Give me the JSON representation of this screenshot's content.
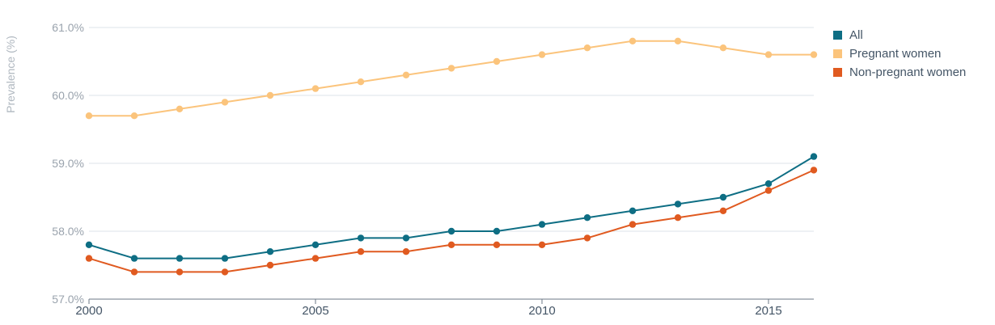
{
  "chart_data": {
    "type": "line",
    "ylabel": "Prevalence (%)",
    "ylim": [
      57.0,
      61.0
    ],
    "yticks": [
      "57.0%",
      "58.0%",
      "59.0%",
      "60.0%",
      "61.0%"
    ],
    "ytick_values": [
      57.0,
      58.0,
      59.0,
      60.0,
      61.0
    ],
    "xlim": [
      2000,
      2016
    ],
    "xticks": [
      "2000",
      "2005",
      "2010",
      "2015"
    ],
    "xtick_values": [
      2000,
      2005,
      2010,
      2015
    ],
    "grid": true,
    "legend_placement": "top-right",
    "x": [
      2000,
      2001,
      2002,
      2003,
      2004,
      2005,
      2006,
      2007,
      2008,
      2009,
      2010,
      2011,
      2012,
      2013,
      2014,
      2015,
      2016
    ],
    "series": [
      {
        "name": "All",
        "color": "#0e6e84",
        "values": [
          57.8,
          57.6,
          57.6,
          57.6,
          57.7,
          57.8,
          57.9,
          57.9,
          58.0,
          58.0,
          58.1,
          58.2,
          58.3,
          58.4,
          58.5,
          58.7,
          59.1
        ]
      },
      {
        "name": "Pregnant women",
        "color": "#fbc47c",
        "values": [
          59.7,
          59.7,
          59.8,
          59.9,
          60.0,
          60.1,
          60.2,
          60.3,
          60.4,
          60.5,
          60.6,
          60.7,
          60.8,
          60.8,
          60.7,
          60.6,
          60.6
        ]
      },
      {
        "name": "Non-pregnant women",
        "color": "#e05a20",
        "values": [
          57.6,
          57.4,
          57.4,
          57.4,
          57.5,
          57.6,
          57.7,
          57.7,
          57.8,
          57.8,
          57.8,
          57.9,
          58.1,
          58.2,
          58.3,
          58.6,
          58.9
        ]
      }
    ]
  }
}
